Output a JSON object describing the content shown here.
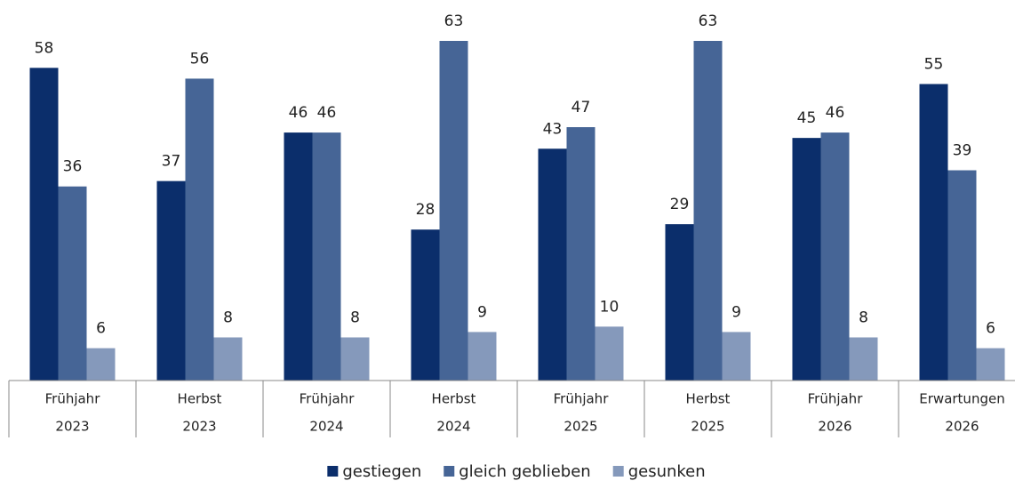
{
  "chart_data": {
    "type": "bar",
    "categories": [
      [
        "Frühjahr",
        "2023"
      ],
      [
        "Herbst",
        "2023"
      ],
      [
        "Frühjahr",
        "2024"
      ],
      [
        "Herbst",
        "2024"
      ],
      [
        "Frühjahr",
        "2025"
      ],
      [
        "Herbst",
        "2025"
      ],
      [
        "Frühjahr",
        "2026"
      ],
      [
        "Erwartungen",
        "2026"
      ]
    ],
    "series": [
      {
        "name": "gestiegen",
        "color": "#0b2e6b",
        "values": [
          58,
          37,
          46,
          28,
          43,
          29,
          45,
          55
        ]
      },
      {
        "name": "gleich geblieben",
        "color": "#466596",
        "values": [
          36,
          56,
          46,
          63,
          47,
          63,
          46,
          39
        ]
      },
      {
        "name": "gesunken",
        "color": "#8599bb",
        "values": [
          6,
          8,
          8,
          9,
          10,
          9,
          8,
          6
        ]
      }
    ],
    "legend": "bottom"
  }
}
